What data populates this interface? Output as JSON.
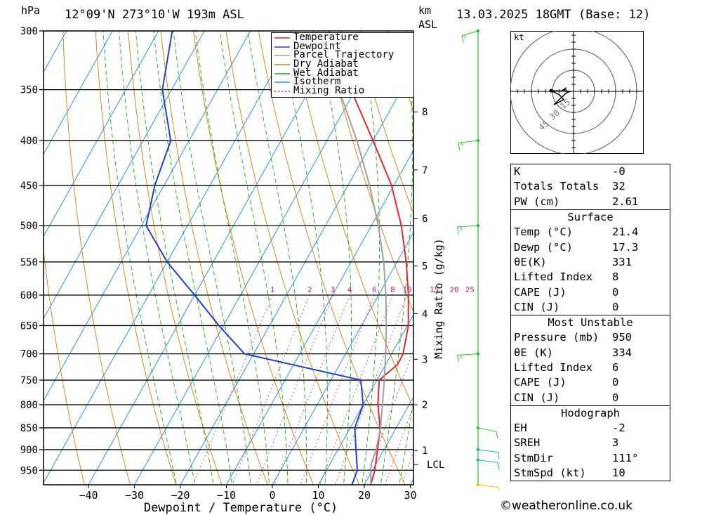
{
  "header": {
    "unit_p": "hPa",
    "location": "12°09'N  273°10'W  193m  ASL",
    "unit_km": "km",
    "unit_asl": "ASL",
    "datetime": "13.03.2025  18GMT  (Base: 12)"
  },
  "footer": {
    "copyright": "©weatheronline.co.uk"
  },
  "chart_data": {
    "type": "skew-t log-p",
    "xlabel": "Dewpoint / Temperature (°C)",
    "ylabel_left": "hPa",
    "ylabel_right": "km ASL",
    "mixing_axis_label": "Mixing Ratio (g/kg)",
    "pressure_ticks": [
      300,
      350,
      400,
      450,
      500,
      550,
      600,
      650,
      700,
      750,
      800,
      850,
      900,
      950
    ],
    "temperature_ticks": [
      -40,
      -30,
      -20,
      -10,
      0,
      10,
      20,
      30
    ],
    "ylim_hpa": [
      987,
      300
    ],
    "xlim_c_at_bottom": [
      -40,
      40
    ],
    "km_ticks": [
      {
        "label": "8",
        "p": 371
      },
      {
        "label": "7",
        "p": 432
      },
      {
        "label": "6",
        "p": 491
      },
      {
        "label": "5",
        "p": 556
      },
      {
        "label": "4",
        "p": 630
      },
      {
        "label": "3",
        "p": 710
      },
      {
        "label": "2",
        "p": 800
      },
      {
        "label": "1",
        "p": 902
      },
      {
        "label": "LCL",
        "p": 936
      }
    ],
    "mixing_ratio_labels": [
      "1",
      "2",
      "3",
      "4",
      "6",
      "8",
      "10",
      "15",
      "20",
      "25"
    ],
    "legend": [
      "Temperature",
      "Dewpoint",
      "Parcel Trajectory",
      "Dry Adiabat",
      "Wet Adiabat",
      "Isotherm",
      "Mixing Ratio"
    ],
    "legend_position": "top-right",
    "colors": {
      "temperature": "#e8262c",
      "dewpoint": "#1f3fd6",
      "parcel": "#a0a0a0",
      "dry_adiabat": "#e07a00",
      "wet_adiabat": "#10b010",
      "isotherm": "#1e9ae6",
      "mixing_ratio": "#d0207a",
      "wind_low": "#22cc22",
      "wind_mid": "#11bbaa",
      "wind_surface": "#ddcc00"
    },
    "series": [
      {
        "name": "Temperature",
        "points": [
          [
            987,
            21.4
          ],
          [
            950,
            20.5
          ],
          [
            900,
            18.6
          ],
          [
            850,
            16.5
          ],
          [
            800,
            13.2
          ],
          [
            750,
            10.5
          ],
          [
            720,
            12.6
          ],
          [
            700,
            12.5
          ],
          [
            650,
            10.2
          ],
          [
            600,
            6.5
          ],
          [
            550,
            2.0
          ],
          [
            500,
            -3.5
          ],
          [
            450,
            -10.5
          ],
          [
            400,
            -20.0
          ],
          [
            350,
            -31.0
          ],
          [
            300,
            -43.0
          ]
        ]
      },
      {
        "name": "Dewpoint",
        "points": [
          [
            987,
            17.3
          ],
          [
            950,
            16.7
          ],
          [
            900,
            13.9
          ],
          [
            850,
            11.0
          ],
          [
            800,
            10.0
          ],
          [
            750,
            6.5
          ],
          [
            700,
            -22.0
          ],
          [
            650,
            -31.0
          ],
          [
            600,
            -40.0
          ],
          [
            550,
            -50.0
          ],
          [
            500,
            -59.0
          ],
          [
            450,
            -62.0
          ],
          [
            400,
            -64.0
          ],
          [
            350,
            -72.0
          ],
          [
            300,
            -77.0
          ]
        ]
      },
      {
        "name": "Parcel Trajectory",
        "points": [
          [
            987,
            21.4
          ],
          [
            936,
            19.0
          ],
          [
            900,
            18.3
          ],
          [
            850,
            16.6
          ],
          [
            800,
            14.2
          ],
          [
            750,
            11.6
          ],
          [
            700,
            8.7
          ],
          [
            650,
            5.4
          ],
          [
            600,
            1.6
          ],
          [
            550,
            -2.9
          ],
          [
            500,
            -8.5
          ],
          [
            450,
            -15.3
          ],
          [
            400,
            -23.5
          ],
          [
            350,
            -33.6
          ],
          [
            300,
            -46.4
          ]
        ]
      }
    ],
    "wind_barbs": [
      {
        "p": 300,
        "dir": 230,
        "kt": 15
      },
      {
        "p": 400,
        "dir": 250,
        "kt": 15
      },
      {
        "p": 500,
        "dir": 260,
        "kt": 15
      },
      {
        "p": 700,
        "dir": 260,
        "kt": 15
      },
      {
        "p": 850,
        "dir": 120,
        "kt": 10
      },
      {
        "p": 900,
        "dir": 110,
        "kt": 10
      },
      {
        "p": 925,
        "dir": 110,
        "kt": 10
      },
      {
        "p": 987,
        "dir": 110,
        "kt": 5
      }
    ]
  },
  "hodograph": {
    "unit": "kt",
    "ring_labels": [
      "15",
      "30",
      "45"
    ]
  },
  "indices": {
    "top": [
      {
        "label": "K",
        "value": "-0"
      },
      {
        "label": "Totals Totals",
        "value": "32"
      },
      {
        "label": "PW (cm)",
        "value": "2.61"
      }
    ],
    "surface": {
      "title": "Surface",
      "rows": [
        {
          "label": "Temp (°C)",
          "value": "21.4"
        },
        {
          "label": "Dewp (°C)",
          "value": "17.3"
        },
        {
          "label": "θE(K)",
          "value": "331"
        },
        {
          "label": "Lifted Index",
          "value": "8"
        },
        {
          "label": "CAPE (J)",
          "value": "0"
        },
        {
          "label": "CIN (J)",
          "value": "0"
        }
      ]
    },
    "most_unstable": {
      "title": "Most Unstable",
      "rows": [
        {
          "label": "Pressure (mb)",
          "value": "950"
        },
        {
          "label": "θE (K)",
          "value": "334"
        },
        {
          "label": "Lifted Index",
          "value": "6"
        },
        {
          "label": "CAPE (J)",
          "value": "0"
        },
        {
          "label": "CIN (J)",
          "value": "0"
        }
      ]
    },
    "hodograph": {
      "title": "Hodograph",
      "rows": [
        {
          "label": "EH",
          "value": "-2"
        },
        {
          "label": "SREH",
          "value": "3"
        },
        {
          "label": "StmDir",
          "value": "111°"
        },
        {
          "label": "StmSpd (kt)",
          "value": "10"
        }
      ]
    }
  }
}
